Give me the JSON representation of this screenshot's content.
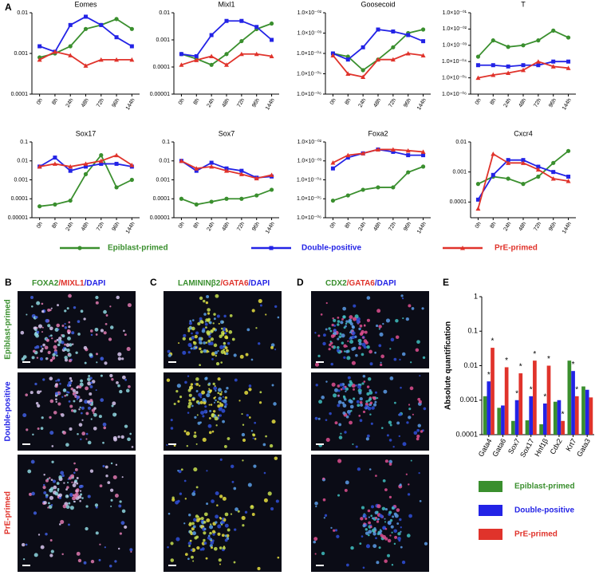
{
  "panel_letters": [
    "A",
    "B",
    "C",
    "D",
    "E"
  ],
  "legend": {
    "items": [
      {
        "name": "Epiblast-primed",
        "color": "#3a8f2e",
        "marker": "circle"
      },
      {
        "name": "Double-positive",
        "color": "#2323e6",
        "marker": "square"
      },
      {
        "name": "PrE-primed",
        "color": "#e0332b",
        "marker": "triangle"
      }
    ]
  },
  "image_panels": [
    {
      "title": [
        {
          "text": "FOXA2",
          "color": "#3a8f2e"
        },
        {
          "text": "/MIXL1",
          "color": "#e0332b"
        },
        {
          "text": "/DAPI",
          "color": "#2323e6"
        }
      ]
    },
    {
      "title": [
        {
          "text": "LAMININβ2",
          "color": "#3a8f2e"
        },
        {
          "text": "/GATA6",
          "color": "#e0332b"
        },
        {
          "text": "/DAPI",
          "color": "#2323e6"
        }
      ]
    },
    {
      "title": [
        {
          "text": "CDX2",
          "color": "#3a8f2e"
        },
        {
          "text": "/GATA6",
          "color": "#e0332b"
        },
        {
          "text": "/DAPI",
          "color": "#2323e6"
        }
      ]
    }
  ],
  "chart_data": [
    {
      "type": "line",
      "title": "Eomes",
      "categories": [
        "0h",
        "8h",
        "24h",
        "48h",
        "72h",
        "96h",
        "144h"
      ],
      "log_scale": true,
      "ylim": [
        0.0001,
        0.01
      ],
      "yticks": [
        0.0001,
        0.001,
        0.01
      ],
      "series": [
        {
          "values": [
            0.0008,
            0.001,
            0.0015,
            0.004,
            0.005,
            0.007,
            0.004
          ]
        },
        {
          "values": [
            0.0015,
            0.0011,
            0.005,
            0.008,
            0.005,
            0.0025,
            0.0015
          ]
        },
        {
          "values": [
            0.0007,
            0.0011,
            0.0009,
            0.0005,
            0.0007,
            0.0007,
            0.0007
          ]
        }
      ]
    },
    {
      "type": "line",
      "title": "Mixl1",
      "categories": [
        "0h",
        "8h",
        "24h",
        "48h",
        "72h",
        "96h",
        "144h"
      ],
      "log_scale": true,
      "ylim": [
        1e-05,
        0.01
      ],
      "yticks": [
        1e-05,
        0.0001,
        0.001,
        0.01
      ],
      "series": [
        {
          "values": [
            0.0003,
            0.0002,
            0.00012,
            0.0003,
            0.0009,
            0.0025,
            0.004
          ]
        },
        {
          "values": [
            0.0003,
            0.00025,
            0.0015,
            0.005,
            0.005,
            0.003,
            0.001
          ]
        },
        {
          "values": [
            0.00012,
            0.00018,
            0.00025,
            0.00012,
            0.0003,
            0.0003,
            0.00025
          ]
        }
      ]
    },
    {
      "type": "line",
      "title": "Goosecoid",
      "categories": [
        "0h",
        "8h",
        "24h",
        "48h",
        "72h",
        "96h",
        "144h"
      ],
      "log_scale": true,
      "ylim": [
        1e-06,
        0.01
      ],
      "yticks": [
        {
          "value": 1e-06,
          "label": "1.0×10⁻⁰⁶"
        },
        {
          "value": 1e-05,
          "label": "1.0×10⁻⁰⁵"
        },
        {
          "value": 0.0001,
          "label": "1.0×10⁻⁰⁴"
        },
        {
          "value": 0.001,
          "label": "1.0×10⁻⁰³"
        },
        {
          "value": 0.01,
          "label": "1.0×10⁻⁰²"
        }
      ],
      "series": [
        {
          "values": [
            0.0001,
            7e-05,
            1.5e-05,
            5e-05,
            0.0002,
            0.001,
            0.0015
          ]
        },
        {
          "values": [
            0.0001,
            5e-05,
            0.0002,
            0.0015,
            0.0012,
            0.0008,
            0.0004
          ]
        },
        {
          "values": [
            8e-05,
            1e-05,
            7e-06,
            5e-05,
            5e-05,
            0.0001,
            8e-05
          ]
        }
      ]
    },
    {
      "type": "line",
      "title": "T",
      "categories": [
        "0h",
        "8h",
        "24h",
        "48h",
        "72h",
        "96h",
        "144h"
      ],
      "log_scale": true,
      "ylim": [
        1e-06,
        0.1
      ],
      "yticks": [
        {
          "value": 1e-06,
          "label": "1.0×10⁻⁰⁶"
        },
        {
          "value": 1e-05,
          "label": "1.0×10⁻⁰⁵"
        },
        {
          "value": 0.0001,
          "label": "1.0×10⁻⁰⁴"
        },
        {
          "value": 0.001,
          "label": "1.0×10⁻⁰³"
        },
        {
          "value": 0.01,
          "label": "1.0×10⁻⁰²"
        },
        {
          "value": 0.1,
          "label": "1.0×10⁻⁰¹"
        }
      ],
      "series": [
        {
          "values": [
            0.0002,
            0.002,
            0.0008,
            0.001,
            0.002,
            0.008,
            0.003
          ]
        },
        {
          "values": [
            6e-05,
            6e-05,
            5e-05,
            6e-05,
            6e-05,
            0.0001,
            0.0001
          ]
        },
        {
          "values": [
            1e-05,
            1.5e-05,
            2e-05,
            3e-05,
            0.0001,
            5e-05,
            4e-05
          ]
        }
      ]
    },
    {
      "type": "line",
      "title": "Sox17",
      "categories": [
        "0h",
        "8h",
        "24h",
        "48h",
        "72h",
        "96h",
        "144h"
      ],
      "log_scale": true,
      "ylim": [
        1e-05,
        0.1
      ],
      "yticks": [
        1e-05,
        0.0001,
        0.001,
        0.01,
        0.1
      ],
      "series": [
        {
          "values": [
            4e-05,
            5e-05,
            8e-05,
            0.002,
            0.02,
            0.0004,
            0.001
          ]
        },
        {
          "values": [
            0.005,
            0.015,
            0.003,
            0.005,
            0.007,
            0.007,
            0.005
          ]
        },
        {
          "values": [
            0.005,
            0.007,
            0.005,
            0.007,
            0.01,
            0.02,
            0.006
          ]
        }
      ]
    },
    {
      "type": "line",
      "title": "Sox7",
      "categories": [
        "0h",
        "8h",
        "24h",
        "48h",
        "72h",
        "96h",
        "144h"
      ],
      "log_scale": true,
      "ylim": [
        1e-05,
        0.1
      ],
      "yticks": [
        1e-05,
        0.0001,
        0.001,
        0.01,
        0.1
      ],
      "series": [
        {
          "values": [
            0.0001,
            5e-05,
            7e-05,
            0.0001,
            0.0001,
            0.00015,
            0.0003
          ]
        },
        {
          "values": [
            0.01,
            0.003,
            0.008,
            0.004,
            0.003,
            0.0013,
            0.0015
          ]
        },
        {
          "values": [
            0.01,
            0.004,
            0.005,
            0.003,
            0.002,
            0.0012,
            0.0018
          ]
        }
      ]
    },
    {
      "type": "line",
      "title": "Foxa2",
      "categories": [
        "0h",
        "8h",
        "24h",
        "48h",
        "72h",
        "96h",
        "144h"
      ],
      "log_scale": true,
      "ylim": [
        1e-06,
        0.01
      ],
      "yticks": [
        {
          "value": 1e-06,
          "label": "1.0×10⁻⁰⁶"
        },
        {
          "value": 1e-05,
          "label": "1.0×10⁻⁰⁵"
        },
        {
          "value": 0.0001,
          "label": "1.0×10⁻⁰⁴"
        },
        {
          "value": 0.001,
          "label": "1.0×10⁻⁰³"
        },
        {
          "value": 0.01,
          "label": "1.0×10⁻⁰²"
        }
      ],
      "series": [
        {
          "values": [
            8e-06,
            1.5e-05,
            3e-05,
            4e-05,
            4e-05,
            0.00025,
            0.0005
          ]
        },
        {
          "values": [
            0.0004,
            0.0015,
            0.0025,
            0.004,
            0.003,
            0.002,
            0.002
          ]
        },
        {
          "values": [
            0.0008,
            0.002,
            0.0025,
            0.004,
            0.004,
            0.0035,
            0.003
          ]
        }
      ]
    },
    {
      "type": "line",
      "title": "Cxcr4",
      "categories": [
        "0h",
        "8h",
        "24h",
        "48h",
        "72h",
        "96h",
        "144h"
      ],
      "log_scale": true,
      "ylim": [
        3e-05,
        0.01
      ],
      "yticks": [
        0.0001,
        0.001,
        0.01
      ],
      "series": [
        {
          "values": [
            0.0004,
            0.0007,
            0.0006,
            0.0004,
            0.0007,
            0.002,
            0.005
          ]
        },
        {
          "values": [
            0.00012,
            0.0008,
            0.0025,
            0.0025,
            0.0015,
            0.001,
            0.0007
          ]
        },
        {
          "values": [
            6e-05,
            0.004,
            0.002,
            0.002,
            0.0012,
            0.0006,
            0.0005
          ]
        }
      ]
    },
    {
      "type": "bar",
      "y_label": "Absolute quantification",
      "categories": [
        "Gata4",
        "Gata6",
        "Sox7",
        "Sox17",
        "Hnf1β",
        "Cdx2",
        "Krt7",
        "Gata3"
      ],
      "log_scale": true,
      "ylim": [
        0.0001,
        1
      ],
      "yticks": [
        0.0001,
        0.001,
        0.01,
        0.1,
        1
      ],
      "series": [
        {
          "values": [
            0.0013,
            0.0006,
            0.00025,
            0.00026,
            0.0002,
            0.0009,
            0.014,
            0.0025
          ]
        },
        {
          "values": [
            0.0035,
            0.0007,
            0.001,
            0.0013,
            0.0008,
            0.001,
            0.007,
            0.002
          ],
          "stars": [
            "*",
            null,
            "*",
            "*",
            "*",
            null,
            "*",
            null
          ]
        },
        {
          "values": [
            0.033,
            0.009,
            0.006,
            0.014,
            0.01,
            0.00025,
            0.0013,
            0.0012
          ],
          "stars": [
            "*",
            "*",
            "*",
            "*",
            "*",
            "*",
            "*",
            null
          ]
        }
      ]
    }
  ]
}
